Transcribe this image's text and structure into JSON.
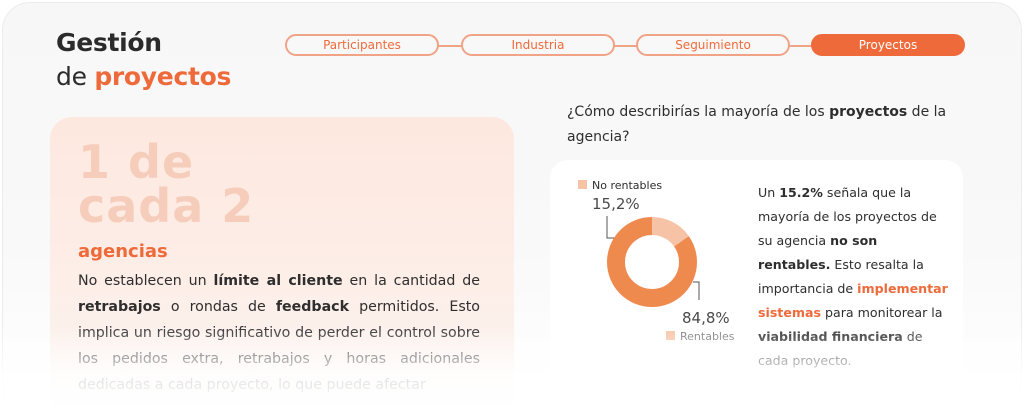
{
  "header": {
    "title_line1": "Gestión",
    "title_line2_prefix": "de",
    "title_line2_highlight": "proyectos"
  },
  "steps": [
    {
      "label": "Participantes",
      "active": false
    },
    {
      "label": "Industria",
      "active": false
    },
    {
      "label": "Seguimiento",
      "active": false
    },
    {
      "label": "Proyectos",
      "active": true
    }
  ],
  "stat": {
    "big_line1": "1 de",
    "big_line2": "cada 2",
    "subject": "agencias",
    "text": {
      "p1": "No establecen un ",
      "b1": "límite al cliente",
      "p2": " en la cantidad de ",
      "b2": "retrabajos",
      "p3": " o rondas de ",
      "b3": "feedback",
      "p4": " permitidos. Esto implica un riesgo significativo de perder el control sobre los pedidos extra, retrabajos y horas adicionales dedicadas a cada proyecto, lo que puede afectar"
    }
  },
  "question": {
    "p1": "¿Cómo describirías la mayoría de los ",
    "b1": "proyectos",
    "p2": " de la agencia?"
  },
  "chart_data": {
    "type": "pie",
    "categories": [
      "No rentables",
      "Rentables"
    ],
    "values": [
      15.2,
      84.8
    ],
    "value_labels": [
      "15,2%",
      "84,8%"
    ],
    "colors": [
      "#f7c3a6",
      "#ef8a4f"
    ],
    "legend": "beside-labels"
  },
  "description": {
    "p1": "Un ",
    "b1": "15.2%",
    "p2": " señala que  la mayoría de los proyectos de su agencia ",
    "b2": "no son rentables.",
    "p3": " Esto resalta la importancia de ",
    "hl1": "implementar sistemas",
    "p4": " para monitorear la ",
    "b3": "viabilidad financiera",
    "p5": " de cada proyecto."
  }
}
